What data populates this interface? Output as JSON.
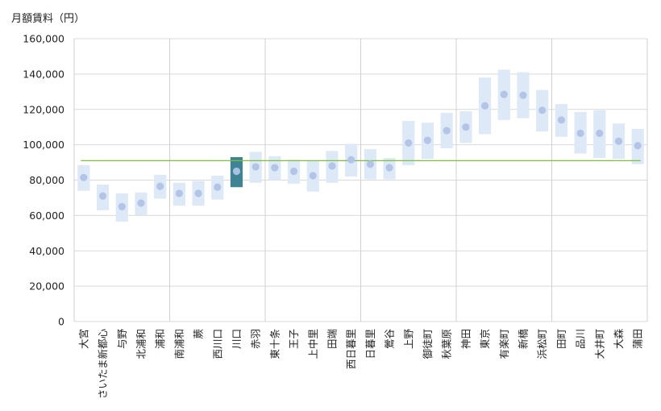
{
  "chart_data": {
    "type": "range",
    "ylabel": "月額賃料（円）",
    "ylim": [
      0,
      160000
    ],
    "yticks": [
      0,
      20000,
      40000,
      60000,
      80000,
      100000,
      120000,
      140000,
      160000
    ],
    "ytick_labels": [
      "0",
      "20,000",
      "40,000",
      "60,000",
      "80,000",
      "100,000",
      "120,000",
      "140,000",
      "160,000"
    ],
    "reference_value": 91000,
    "highlight": "川口",
    "group_separators_after": [
      4,
      9,
      14,
      19,
      24
    ],
    "categories": [
      "大宮",
      "さいたま新都心",
      "与野",
      "北浦和",
      "浦和",
      "南浦和",
      "蕨",
      "西川口",
      "川口",
      "赤羽",
      "東十条",
      "王子",
      "上中里",
      "田端",
      "西日暮里",
      "日暮里",
      "鶯谷",
      "上野",
      "御徒町",
      "秋葉原",
      "神田",
      "東京",
      "有楽町",
      "新橋",
      "浜松町",
      "田町",
      "品川",
      "大井町",
      "大森",
      "蒲田"
    ],
    "series": [
      {
        "name": "min",
        "values": [
          74000,
          63000,
          56500,
          60000,
          69500,
          65500,
          65500,
          69000,
          76000,
          78500,
          80000,
          78000,
          73500,
          78500,
          82000,
          80500,
          80500,
          88500,
          92000,
          98000,
          101000,
          106000,
          114000,
          115000,
          107500,
          104500,
          95000,
          92500,
          92000,
          89000
        ]
      },
      {
        "name": "max",
        "values": [
          88500,
          77500,
          72500,
          73000,
          83000,
          78500,
          79500,
          82500,
          93000,
          96000,
          93500,
          91500,
          91000,
          96500,
          100500,
          97500,
          92500,
          113500,
          112500,
          118000,
          119000,
          138000,
          142500,
          141000,
          131000,
          123000,
          118500,
          119500,
          112000,
          109000
        ]
      },
      {
        "name": "average",
        "values": [
          81500,
          71000,
          65000,
          67000,
          76500,
          72500,
          72500,
          76000,
          85000,
          87500,
          87000,
          85000,
          82500,
          88000,
          91500,
          89000,
          87000,
          101000,
          102500,
          108000,
          110000,
          122000,
          128500,
          128000,
          119500,
          114000,
          106500,
          106500,
          102000,
          99500
        ]
      }
    ],
    "colors": {
      "range": "#dde9f7",
      "range_highlight": "#3e8494",
      "point": "#b3c4e6",
      "point_highlight": "#a8c0e4",
      "reference": "#7cbf3a",
      "grid": "#d9d9d9",
      "separator": "#d0d0d0"
    }
  }
}
